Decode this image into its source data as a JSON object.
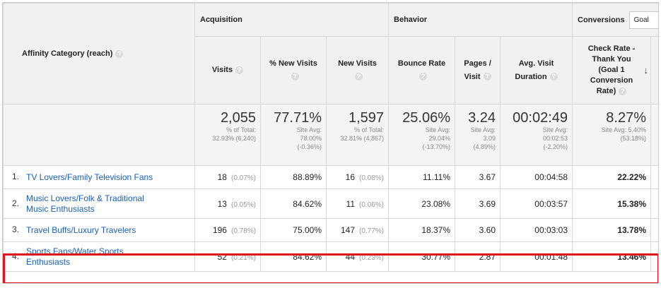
{
  "header": {
    "affinity_label": "Affinity Category (reach)",
    "groups": {
      "acquisition": "Acquisition",
      "behavior": "Behavior",
      "conversions": "Conversions"
    },
    "goal_select": "Goal",
    "columns": {
      "visits": "Visits",
      "pct_new_visits": "% New Visits",
      "new_visits": "New Visits",
      "bounce_rate": "Bounce Rate",
      "pages_visit_1": "Pages /",
      "pages_visit_2": "Visit",
      "avg_duration_1": "Avg. Visit",
      "avg_duration_2": "Duration",
      "check_rate_1": "Check Rate -",
      "check_rate_2": "Thank You",
      "check_rate_3": "(Goal 1",
      "check_rate_4": "Conversion",
      "check_rate_5": "Rate)"
    },
    "sort_icon": "arrow-down-icon",
    "help_icon": "question-icon"
  },
  "totals": {
    "visits": {
      "value": "2,055",
      "sub1": "% of Total:",
      "sub2": "32.93% (6,240)"
    },
    "pct_new_visits": {
      "value": "77.71%",
      "sub1": "Site Avg:",
      "sub2": "78.00%",
      "sub3": "(-0.36%)"
    },
    "new_visits": {
      "value": "1,597",
      "sub1": "% of Total:",
      "sub2": "32.81% (4,867)"
    },
    "bounce_rate": {
      "value": "25.06%",
      "sub1": "Site Avg:",
      "sub2": "29.04%",
      "sub3": "(-13.70%)"
    },
    "pages_visit": {
      "value": "3.24",
      "sub1": "Site Avg:",
      "sub2": "3.09",
      "sub3": "(4.89%)"
    },
    "avg_duration": {
      "value": "00:02:49",
      "sub1": "Site Avg:",
      "sub2": "00:02:53",
      "sub3": "(-2.20%)"
    },
    "check_rate": {
      "value": "8.27%",
      "sub1": "Site Avg: 5.40%",
      "sub2": "(53.18%)"
    }
  },
  "rows": [
    {
      "num": "1.",
      "name1": "TV Lovers/Family Television Fans",
      "name2": "",
      "visits": "18",
      "visits_pct": "(0.07%)",
      "pct_new": "88.89%",
      "new_visits": "16",
      "new_pct": "(0.08%)",
      "bounce": "11.11%",
      "pages": "3.67",
      "duration": "00:04:58",
      "check": "22.22%"
    },
    {
      "num": "2.",
      "name1": "Music Lovers/Folk & Traditional",
      "name2": "Music Enthusiasts",
      "visits": "13",
      "visits_pct": "(0.05%)",
      "pct_new": "84.62%",
      "new_visits": "11",
      "new_pct": "(0.06%)",
      "bounce": "23.08%",
      "pages": "3.69",
      "duration": "00:03:57",
      "check": "15.38%"
    },
    {
      "num": "3.",
      "name1": "Travel Buffs/Luxury Travelers",
      "name2": "",
      "visits": "196",
      "visits_pct": "(0.78%)",
      "pct_new": "75.00%",
      "new_visits": "147",
      "new_pct": "(0.77%)",
      "bounce": "18.37%",
      "pages": "3.60",
      "duration": "00:03:03",
      "check": "13.78%"
    },
    {
      "num": "4.",
      "name1": "Sports Fans/Water Sports",
      "name2": "Enthusiasts",
      "visits": "52",
      "visits_pct": "(0.21%)",
      "pct_new": "84.62%",
      "new_visits": "44",
      "new_pct": "(0.23%)",
      "bounce": "30.77%",
      "pages": "2.87",
      "duration": "00:01:48",
      "check": "13.46%"
    }
  ],
  "colors": {
    "highlight": "#e0161d",
    "link": "#1a5fb4",
    "header_bg": "#f1f1f1"
  }
}
